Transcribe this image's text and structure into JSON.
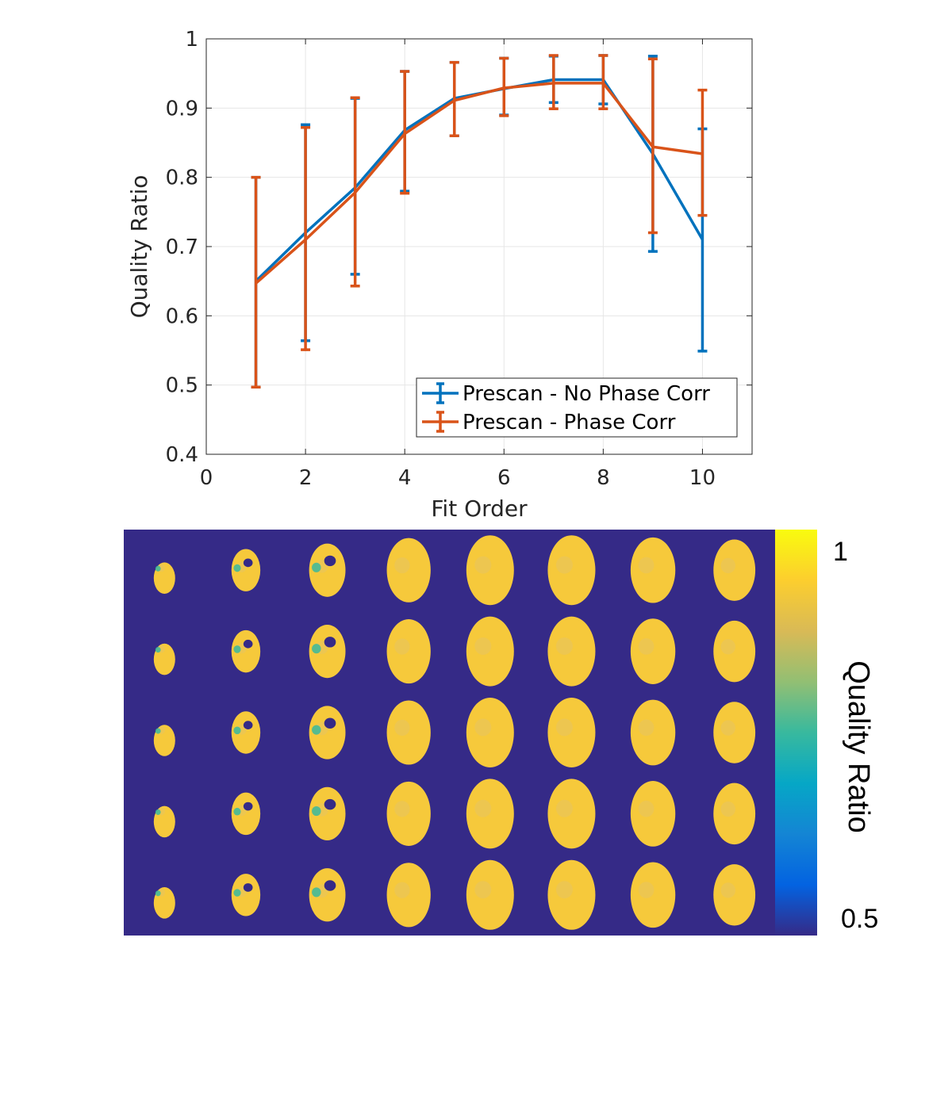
{
  "colors": {
    "series_blue": "#0072BD",
    "series_orange": "#D95319",
    "grid": "#E6E6E6",
    "axes": "#262626",
    "map_background": "#352A87",
    "map_tissue": "#F6C93B",
    "colormap": [
      "#352A87",
      "#0363E1",
      "#1485D4",
      "#06A7C6",
      "#38B99E",
      "#92BF73",
      "#D9BA56",
      "#FCCE2E",
      "#F9FB0E"
    ]
  },
  "chart_data": [
    {
      "type": "line",
      "subtype": "errorbar",
      "title": "",
      "xlabel": "Fit Order",
      "ylabel": "Quality Ratio",
      "xlim": [
        0,
        11
      ],
      "ylim": [
        0.4,
        1
      ],
      "xticks": [
        "0",
        "2",
        "4",
        "6",
        "8",
        "10"
      ],
      "yticks": [
        "0.4",
        "0.5",
        "0.6",
        "0.7",
        "0.8",
        "0.9",
        "1"
      ],
      "grid": true,
      "legend_position": "bottom-right",
      "x": [
        1,
        2,
        3,
        4,
        5,
        6,
        7,
        8,
        9,
        10
      ],
      "series": [
        {
          "name": "Prescan - No Phase Corr",
          "color": "#0072BD",
          "values": [
            0.65,
            0.72,
            0.785,
            0.868,
            0.914,
            0.928,
            0.941,
            0.941,
            0.834,
            0.71
          ],
          "lower": [
            0.497,
            0.564,
            0.66,
            0.78,
            0.86,
            0.89,
            0.908,
            0.906,
            0.693,
            0.549
          ],
          "upper": [
            0.8,
            0.876,
            0.914,
            0.953,
            0.966,
            0.972,
            0.975,
            0.976,
            0.975,
            0.87
          ]
        },
        {
          "name": "Prescan - Phase Corr",
          "color": "#D95319",
          "values": [
            0.647,
            0.71,
            0.778,
            0.863,
            0.911,
            0.929,
            0.936,
            0.936,
            0.844,
            0.834
          ],
          "lower": [
            0.497,
            0.551,
            0.643,
            0.777,
            0.86,
            0.889,
            0.899,
            0.899,
            0.72,
            0.745
          ],
          "upper": [
            0.8,
            0.872,
            0.915,
            0.953,
            0.966,
            0.972,
            0.976,
            0.976,
            0.971,
            0.926
          ]
        }
      ]
    },
    {
      "type": "heatmap",
      "description": "montage of quality-ratio maps",
      "rows": 5,
      "columns": 8,
      "colorbar": {
        "label": "Quality Ratio",
        "range": [
          0.5,
          1
        ],
        "tick_labels": [
          "1",
          "0.5"
        ]
      }
    }
  ]
}
